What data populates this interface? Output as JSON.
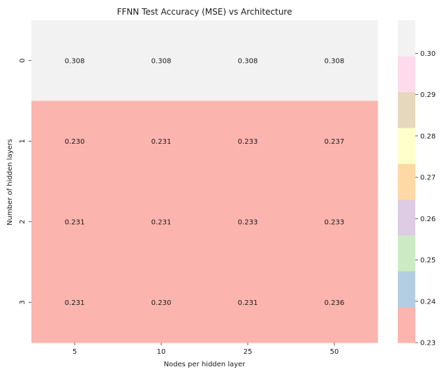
{
  "chart_data": {
    "type": "heatmap",
    "title": "FFNN Test Accuracy (MSE) vs Architecture",
    "xlabel": "Nodes per hidden layer",
    "ylabel": "Number of hidden layers",
    "x_categories": [
      "5",
      "10",
      "25",
      "50"
    ],
    "y_categories": [
      "0",
      "1",
      "2",
      "3"
    ],
    "values": [
      [
        0.308,
        0.308,
        0.308,
        0.308
      ],
      [
        0.23,
        0.231,
        0.233,
        0.237
      ],
      [
        0.231,
        0.231,
        0.233,
        0.233
      ],
      [
        0.231,
        0.23,
        0.231,
        0.236
      ]
    ],
    "annotations": [
      [
        "0.308",
        "0.308",
        "0.308",
        "0.308"
      ],
      [
        "0.230",
        "0.231",
        "0.233",
        "0.237"
      ],
      [
        "0.231",
        "0.231",
        "0.233",
        "0.233"
      ],
      [
        "0.231",
        "0.230",
        "0.231",
        "0.236"
      ]
    ],
    "colormap": "Pastel1 (discrete)",
    "colorbar": {
      "range": [
        0.23,
        0.308
      ],
      "ticks": [
        0.23,
        0.24,
        0.25,
        0.26,
        0.27,
        0.28,
        0.29,
        0.3
      ],
      "tick_labels": [
        "0.23",
        "0.24",
        "0.25",
        "0.26",
        "0.27",
        "0.28",
        "0.29",
        "0.30"
      ],
      "colors": [
        "#fbb4ae",
        "#b3cde3",
        "#ccebc5",
        "#decbe4",
        "#fed9a6",
        "#ffffcc",
        "#e5d8bd",
        "#fddaec",
        "#f2f2f2"
      ]
    }
  }
}
